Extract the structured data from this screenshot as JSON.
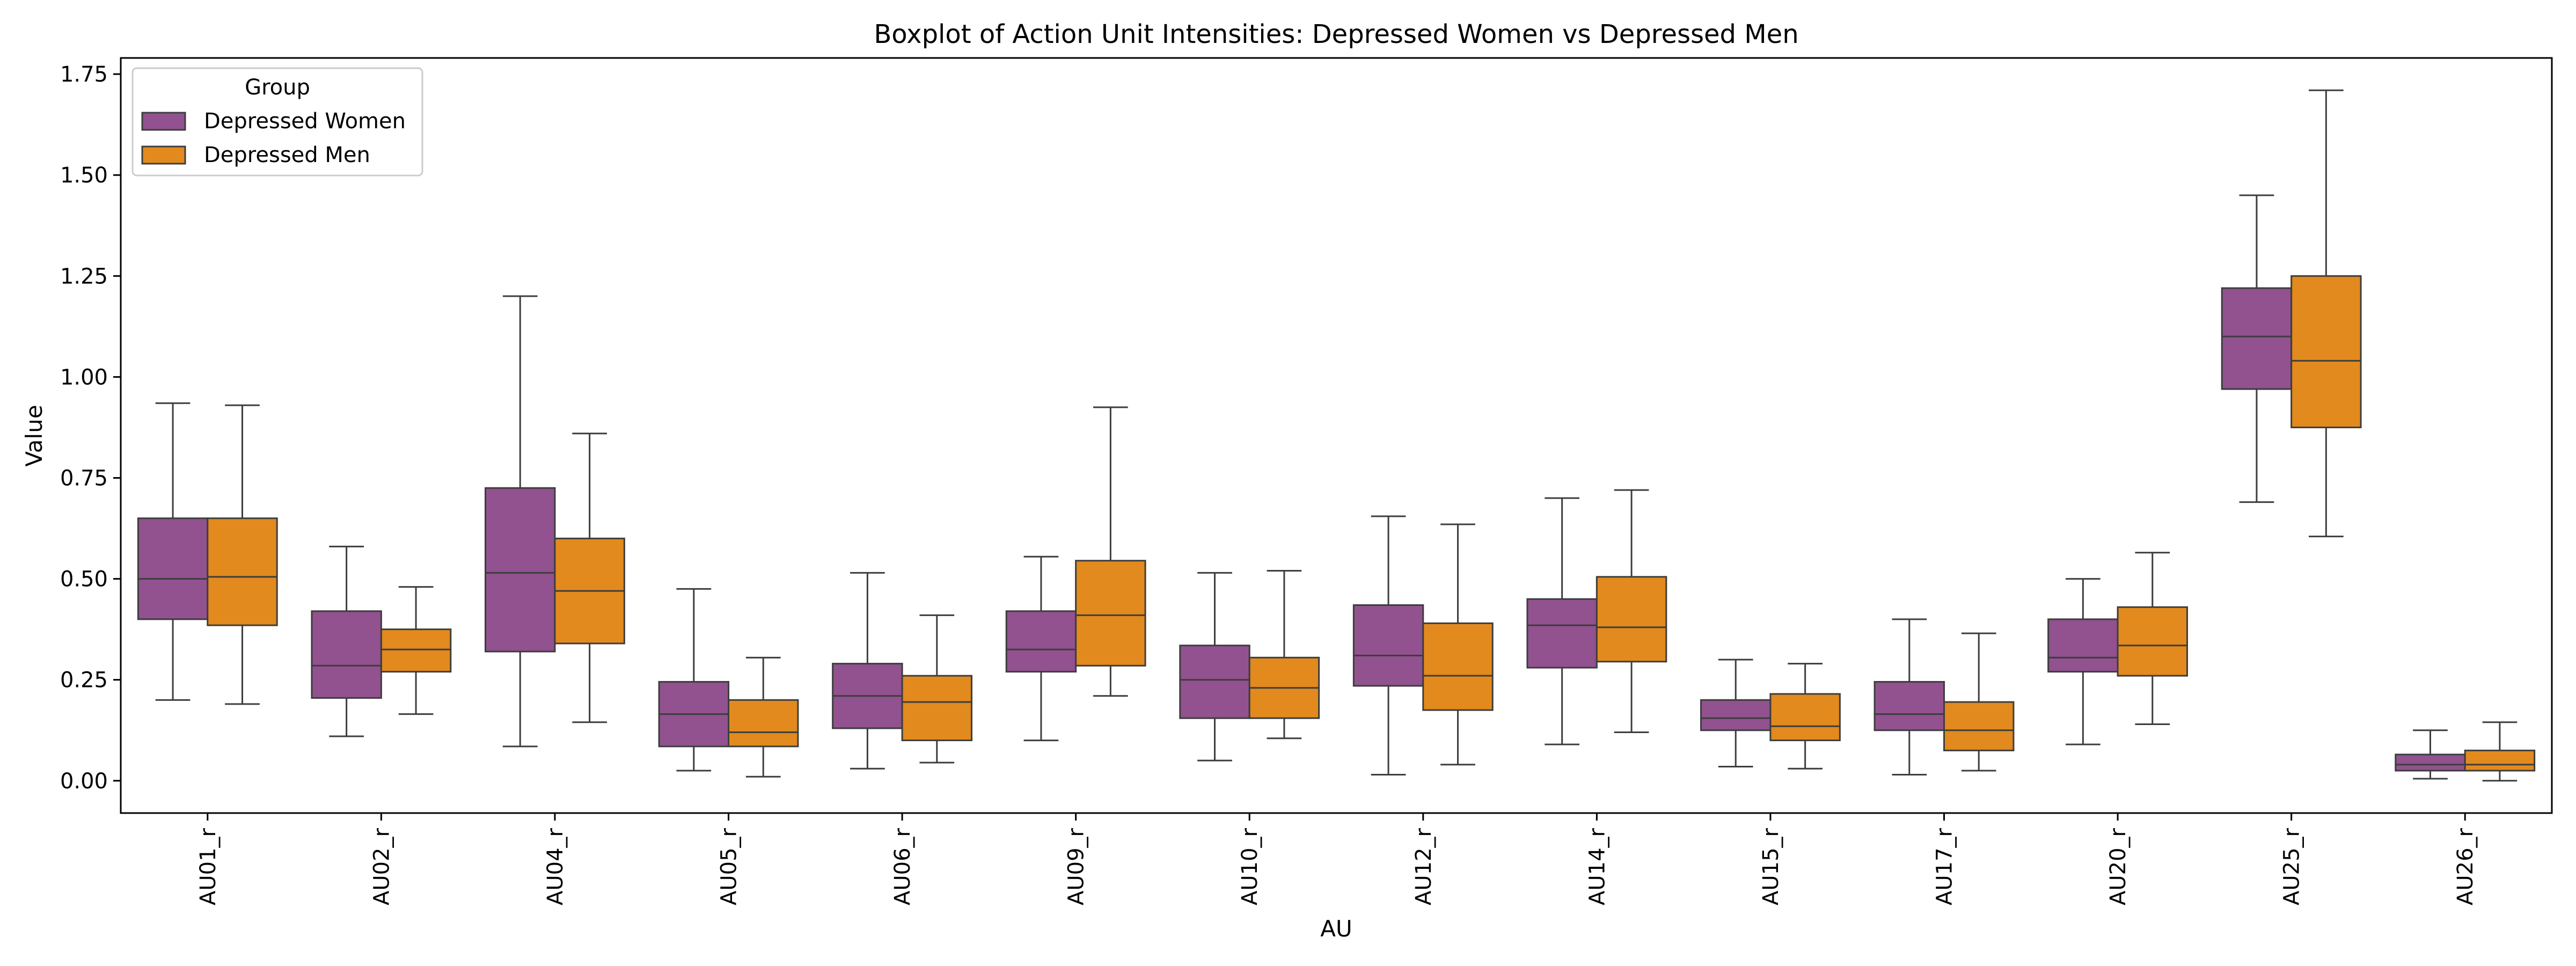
{
  "chart_data": {
    "type": "boxplot",
    "title": "Boxplot of Action Unit Intensities: Depressed Women vs Depressed Men",
    "xlabel": "AU",
    "ylabel": "Value",
    "ylim": [
      -0.08,
      1.79
    ],
    "yticks": [
      "0.00",
      "0.25",
      "0.50",
      "0.75",
      "1.00",
      "1.25",
      "1.50",
      "1.75"
    ],
    "grid": false,
    "legend": {
      "title": "Group",
      "position": "upper-left"
    },
    "categories": [
      "AU01_r",
      "AU02_r",
      "AU04_r",
      "AU05_r",
      "AU06_r",
      "AU09_r",
      "AU10_r",
      "AU12_r",
      "AU14_r",
      "AU15_r",
      "AU17_r",
      "AU20_r",
      "AU25_r",
      "AU26_r"
    ],
    "series": [
      {
        "name": "Depressed Women",
        "color": "#91528f",
        "boxes": [
          {
            "whislo": 0.2,
            "q1": 0.4,
            "med": 0.5,
            "q3": 0.65,
            "whishi": 0.935
          },
          {
            "whislo": 0.11,
            "q1": 0.205,
            "med": 0.285,
            "q3": 0.42,
            "whishi": 0.58
          },
          {
            "whislo": 0.085,
            "q1": 0.32,
            "med": 0.515,
            "q3": 0.725,
            "whishi": 1.2
          },
          {
            "whislo": 0.025,
            "q1": 0.085,
            "med": 0.165,
            "q3": 0.245,
            "whishi": 0.475
          },
          {
            "whislo": 0.03,
            "q1": 0.13,
            "med": 0.21,
            "q3": 0.29,
            "whishi": 0.515
          },
          {
            "whislo": 0.1,
            "q1": 0.27,
            "med": 0.325,
            "q3": 0.42,
            "whishi": 0.555
          },
          {
            "whislo": 0.05,
            "q1": 0.155,
            "med": 0.25,
            "q3": 0.335,
            "whishi": 0.515
          },
          {
            "whislo": 0.015,
            "q1": 0.235,
            "med": 0.31,
            "q3": 0.435,
            "whishi": 0.655
          },
          {
            "whislo": 0.09,
            "q1": 0.28,
            "med": 0.385,
            "q3": 0.45,
            "whishi": 0.7
          },
          {
            "whislo": 0.035,
            "q1": 0.125,
            "med": 0.155,
            "q3": 0.2,
            "whishi": 0.3
          },
          {
            "whislo": 0.015,
            "q1": 0.125,
            "med": 0.165,
            "q3": 0.245,
            "whishi": 0.4
          },
          {
            "whislo": 0.09,
            "q1": 0.27,
            "med": 0.305,
            "q3": 0.4,
            "whishi": 0.5
          },
          {
            "whislo": 0.69,
            "q1": 0.97,
            "med": 1.1,
            "q3": 1.22,
            "whishi": 1.45
          },
          {
            "whislo": 0.005,
            "q1": 0.025,
            "med": 0.04,
            "q3": 0.065,
            "whishi": 0.125
          }
        ]
      },
      {
        "name": "Depressed Men",
        "color": "#e28a1d",
        "boxes": [
          {
            "whislo": 0.19,
            "q1": 0.385,
            "med": 0.505,
            "q3": 0.65,
            "whishi": 0.93
          },
          {
            "whislo": 0.165,
            "q1": 0.27,
            "med": 0.325,
            "q3": 0.375,
            "whishi": 0.48
          },
          {
            "whislo": 0.145,
            "q1": 0.34,
            "med": 0.47,
            "q3": 0.6,
            "whishi": 0.86
          },
          {
            "whislo": 0.01,
            "q1": 0.085,
            "med": 0.12,
            "q3": 0.2,
            "whishi": 0.305
          },
          {
            "whislo": 0.045,
            "q1": 0.1,
            "med": 0.195,
            "q3": 0.26,
            "whishi": 0.41
          },
          {
            "whislo": 0.21,
            "q1": 0.285,
            "med": 0.41,
            "q3": 0.545,
            "whishi": 0.925
          },
          {
            "whislo": 0.105,
            "q1": 0.155,
            "med": 0.23,
            "q3": 0.305,
            "whishi": 0.52
          },
          {
            "whislo": 0.04,
            "q1": 0.175,
            "med": 0.26,
            "q3": 0.39,
            "whishi": 0.635
          },
          {
            "whislo": 0.12,
            "q1": 0.295,
            "med": 0.38,
            "q3": 0.505,
            "whishi": 0.72
          },
          {
            "whislo": 0.03,
            "q1": 0.1,
            "med": 0.135,
            "q3": 0.215,
            "whishi": 0.29
          },
          {
            "whislo": 0.025,
            "q1": 0.075,
            "med": 0.125,
            "q3": 0.195,
            "whishi": 0.365
          },
          {
            "whislo": 0.14,
            "q1": 0.26,
            "med": 0.335,
            "q3": 0.43,
            "whishi": 0.565
          },
          {
            "whislo": 0.605,
            "q1": 0.875,
            "med": 1.04,
            "q3": 1.25,
            "whishi": 1.71
          },
          {
            "whislo": 0.0,
            "q1": 0.025,
            "med": 0.04,
            "q3": 0.075,
            "whishi": 0.145
          }
        ]
      }
    ]
  }
}
